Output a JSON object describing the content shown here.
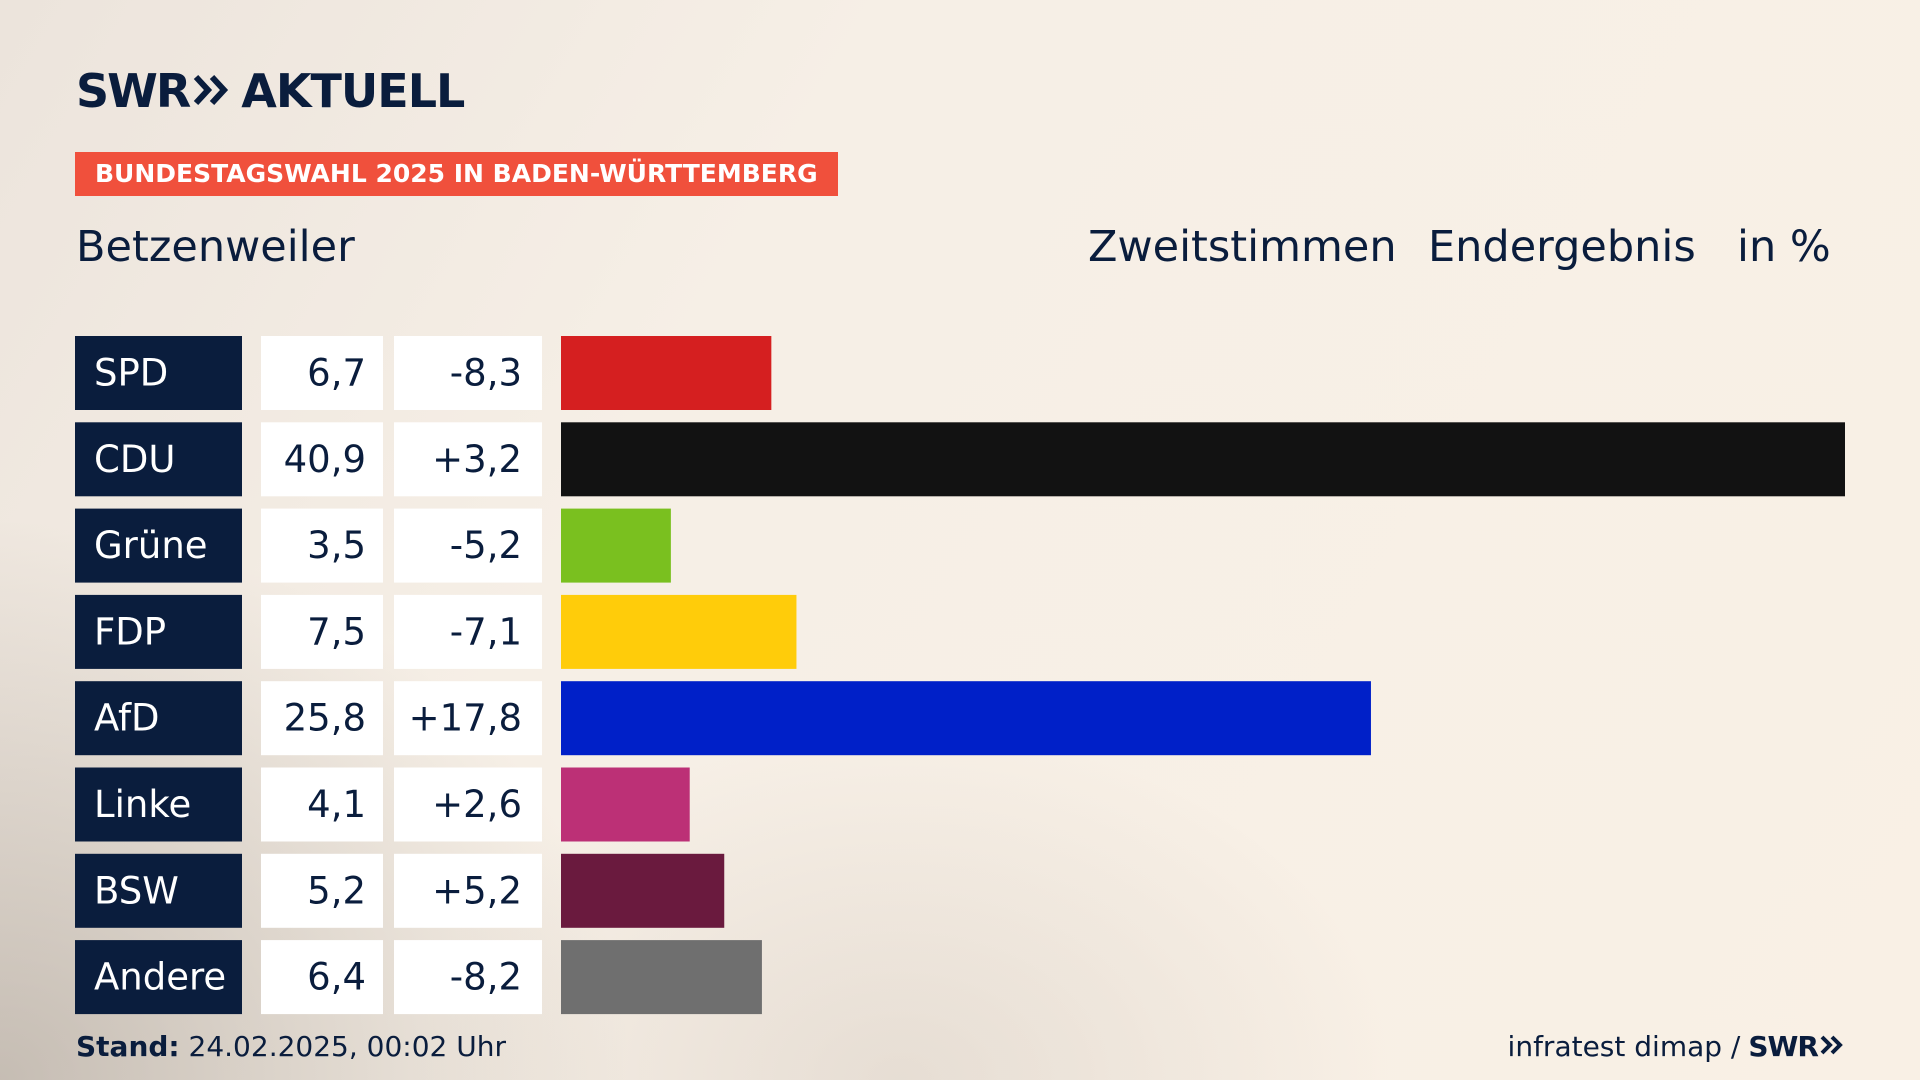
{
  "brand": {
    "logo_left": "SWR",
    "logo_right": "AKTUELL",
    "logo_icon": "double-chevron-icon"
  },
  "banner": "BUNDESTAGSWAHL 2025 IN BADEN-WÜRTTEMBERG",
  "place": "Betzenweiler",
  "header": {
    "vote_type": "Zweitstimmen",
    "status": "Endergebnis",
    "unit": "in %"
  },
  "footer": {
    "stand_label": "Stand:",
    "stand_value": "24.02.2025, 00:02 Uhr",
    "source": "infratest dimap /",
    "source_brand": "SWR"
  },
  "colors": {
    "label_bg": "#0a1d3d",
    "banner": "#f0503c",
    "text": "#0a1d3d"
  },
  "chart_data": {
    "type": "bar",
    "orientation": "horizontal",
    "categories": [
      "SPD",
      "CDU",
      "Grüne",
      "FDP",
      "AfD",
      "Linke",
      "BSW",
      "Andere"
    ],
    "values": [
      6.7,
      40.9,
      3.5,
      7.5,
      25.8,
      4.1,
      5.2,
      6.4
    ],
    "value_labels": [
      "6,7",
      "40,9",
      "3,5",
      "7,5",
      "25,8",
      "4,1",
      "5,2",
      "6,4"
    ],
    "change_labels": [
      "-8,3",
      "+3,2",
      "-5,2",
      "-7,1",
      "+17,8",
      "+2,6",
      "+5,2",
      "-8,2"
    ],
    "changes": [
      -8.3,
      3.2,
      -5.2,
      -7.1,
      17.8,
      2.6,
      5.2,
      -8.2
    ],
    "colors": [
      "#d51f20",
      "#121212",
      "#7ac01f",
      "#ffcc0a",
      "#0020c8",
      "#bc3076",
      "#6a1a3e",
      "#6f6f6f"
    ],
    "xlim": [
      0,
      40.9
    ]
  }
}
